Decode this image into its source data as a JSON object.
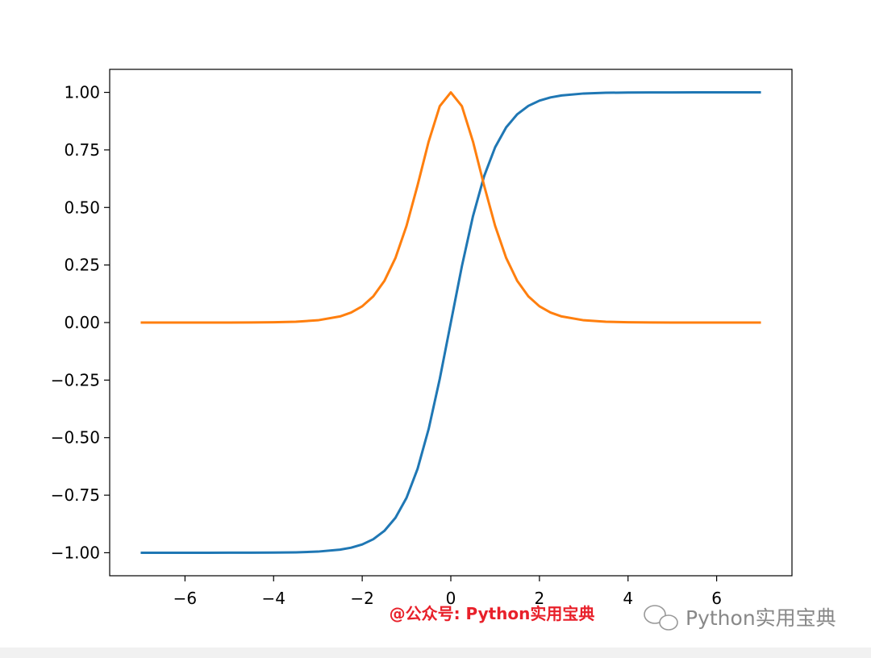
{
  "chart_data": {
    "type": "line",
    "x": [
      -7,
      -6.5,
      -6,
      -5.5,
      -5,
      -4.5,
      -4,
      -3.5,
      -3,
      -2.5,
      -2.25,
      -2,
      -1.75,
      -1.5,
      -1.25,
      -1,
      -0.75,
      -0.5,
      -0.25,
      0,
      0.25,
      0.5,
      0.75,
      1,
      1.25,
      1.5,
      1.75,
      2,
      2.25,
      2.5,
      3,
      3.5,
      4,
      4.5,
      5,
      5.5,
      6,
      6.5,
      7
    ],
    "series": [
      {
        "color": "#1f77b4",
        "values": [
          -1,
          -1,
          -1,
          -1,
          -0.9999,
          -0.9998,
          -0.9993,
          -0.9982,
          -0.9951,
          -0.9866,
          -0.978,
          -0.964,
          -0.9413,
          -0.9051,
          -0.8483,
          -0.7616,
          -0.6351,
          -0.4621,
          -0.2449,
          0,
          0.2449,
          0.4621,
          0.6351,
          0.7616,
          0.8483,
          0.9051,
          0.9413,
          0.964,
          0.978,
          0.9866,
          0.9951,
          0.9982,
          0.9993,
          0.9998,
          0.9999,
          1,
          1,
          1,
          1
        ]
      },
      {
        "color": "#ff7f0e",
        "values": [
          0,
          0,
          0,
          0.0001,
          0.0002,
          0.0005,
          0.0013,
          0.0036,
          0.0099,
          0.0266,
          0.0435,
          0.0707,
          0.114,
          0.1807,
          0.2804,
          0.42,
          0.5966,
          0.7864,
          0.94,
          1,
          0.94,
          0.7864,
          0.5966,
          0.42,
          0.2804,
          0.1807,
          0.114,
          0.0707,
          0.0435,
          0.0266,
          0.0099,
          0.0036,
          0.0013,
          0.0005,
          0.0002,
          0.0001,
          0,
          0,
          0
        ]
      }
    ],
    "xlim": [
      -7.7,
      7.7
    ],
    "ylim": [
      -1.1,
      1.1
    ],
    "xticks": [
      {
        "value": -6,
        "label": "−6"
      },
      {
        "value": -4,
        "label": "−4"
      },
      {
        "value": -2,
        "label": "−2"
      },
      0,
      2,
      4,
      6
    ],
    "yticks": [
      {
        "value": -1,
        "label": "−1.00"
      },
      {
        "value": -0.75,
        "label": "−0.75"
      },
      {
        "value": -0.5,
        "label": "−0.50"
      },
      {
        "value": -0.25,
        "label": "−0.25"
      },
      {
        "value": 0,
        "label": "0.00"
      },
      {
        "value": 0.25,
        "label": "0.25"
      },
      {
        "value": 0.5,
        "label": "0.50"
      },
      {
        "value": 0.75,
        "label": "0.75"
      },
      {
        "value": 1,
        "label": "1.00"
      }
    ],
    "grid": false,
    "annotations": [
      "@公众号: Python实用宝典",
      "Python实用宝典"
    ]
  }
}
